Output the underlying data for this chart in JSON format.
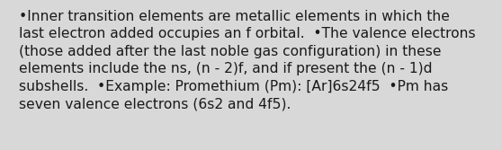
{
  "background_color": "#d8d8d8",
  "text_color": "#1a1a1a",
  "lines": [
    "•Inner transition elements are metallic elements in which the",
    "last electron added occupies an f orbital.  •The valence electrons",
    "(those added after the last noble gas configuration) in these",
    "elements include the ns, (n - 2)f, and if present the (n - 1)d",
    "subshells.  •Example: Promethium (Pm): [Ar]6s24f5  •Pm has",
    "seven valence electrons (6s2 and 4f5)."
  ],
  "font_size": 11.2,
  "font_family": "DejaVu Sans",
  "fig_width": 5.58,
  "fig_height": 1.67,
  "dpi": 100
}
